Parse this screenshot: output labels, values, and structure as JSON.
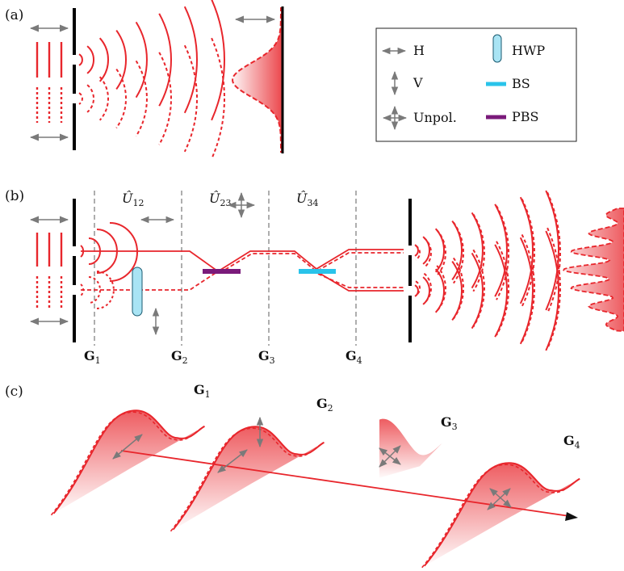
{
  "panels": {
    "a": "(a)",
    "b": "(b)",
    "c": "(c)"
  },
  "legend": {
    "h": "H",
    "v": "V",
    "unpol": "Unpol.",
    "hwp": "HWP",
    "bs": "BS",
    "pbs": "PBS"
  },
  "operators": {
    "u12": {
      "base": "Û",
      "sub": "12"
    },
    "u23": {
      "base": "Û",
      "sub": "23"
    },
    "u34": {
      "base": "Û",
      "sub": "34"
    }
  },
  "planes_b": [
    {
      "base": "G",
      "sub": "1"
    },
    {
      "base": "G",
      "sub": "2"
    },
    {
      "base": "G",
      "sub": "3"
    },
    {
      "base": "G",
      "sub": "4"
    }
  ],
  "planes_c": [
    {
      "base": "G",
      "sub": "1"
    },
    {
      "base": "G",
      "sub": "2"
    },
    {
      "base": "G",
      "sub": "3"
    },
    {
      "base": "G",
      "sub": "4"
    }
  ],
  "colors": {
    "beam": "#e8262c",
    "arrow": "#7a7a7a",
    "bs": "#29c3ea",
    "pbs": "#7a1a7a",
    "hwp": "#a9e4f4",
    "screen": "#000000",
    "guide": "#9a9a9a"
  }
}
